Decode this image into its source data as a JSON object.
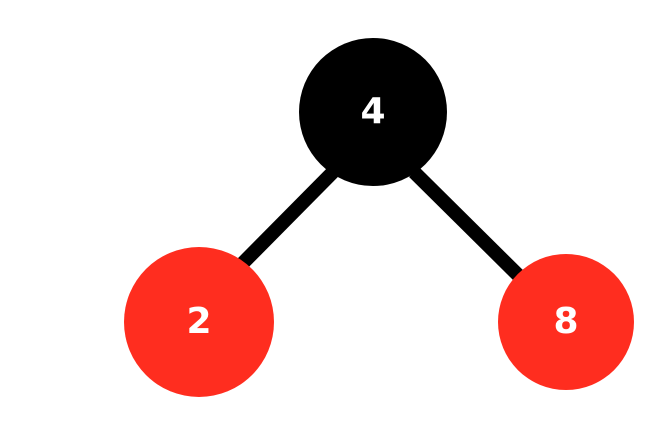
{
  "tree": {
    "type": "red-black-tree",
    "edge_color": "#000000",
    "nodes": [
      {
        "id": "root",
        "label": "4",
        "color": "black",
        "fill": "#000000"
      },
      {
        "id": "left",
        "label": "2",
        "color": "red",
        "fill": "#ff2d1f"
      },
      {
        "id": "right",
        "label": "8",
        "color": "red",
        "fill": "#ff2d1f"
      }
    ],
    "edges": [
      {
        "from": "4",
        "to": "2"
      },
      {
        "from": "4",
        "to": "8"
      }
    ]
  }
}
